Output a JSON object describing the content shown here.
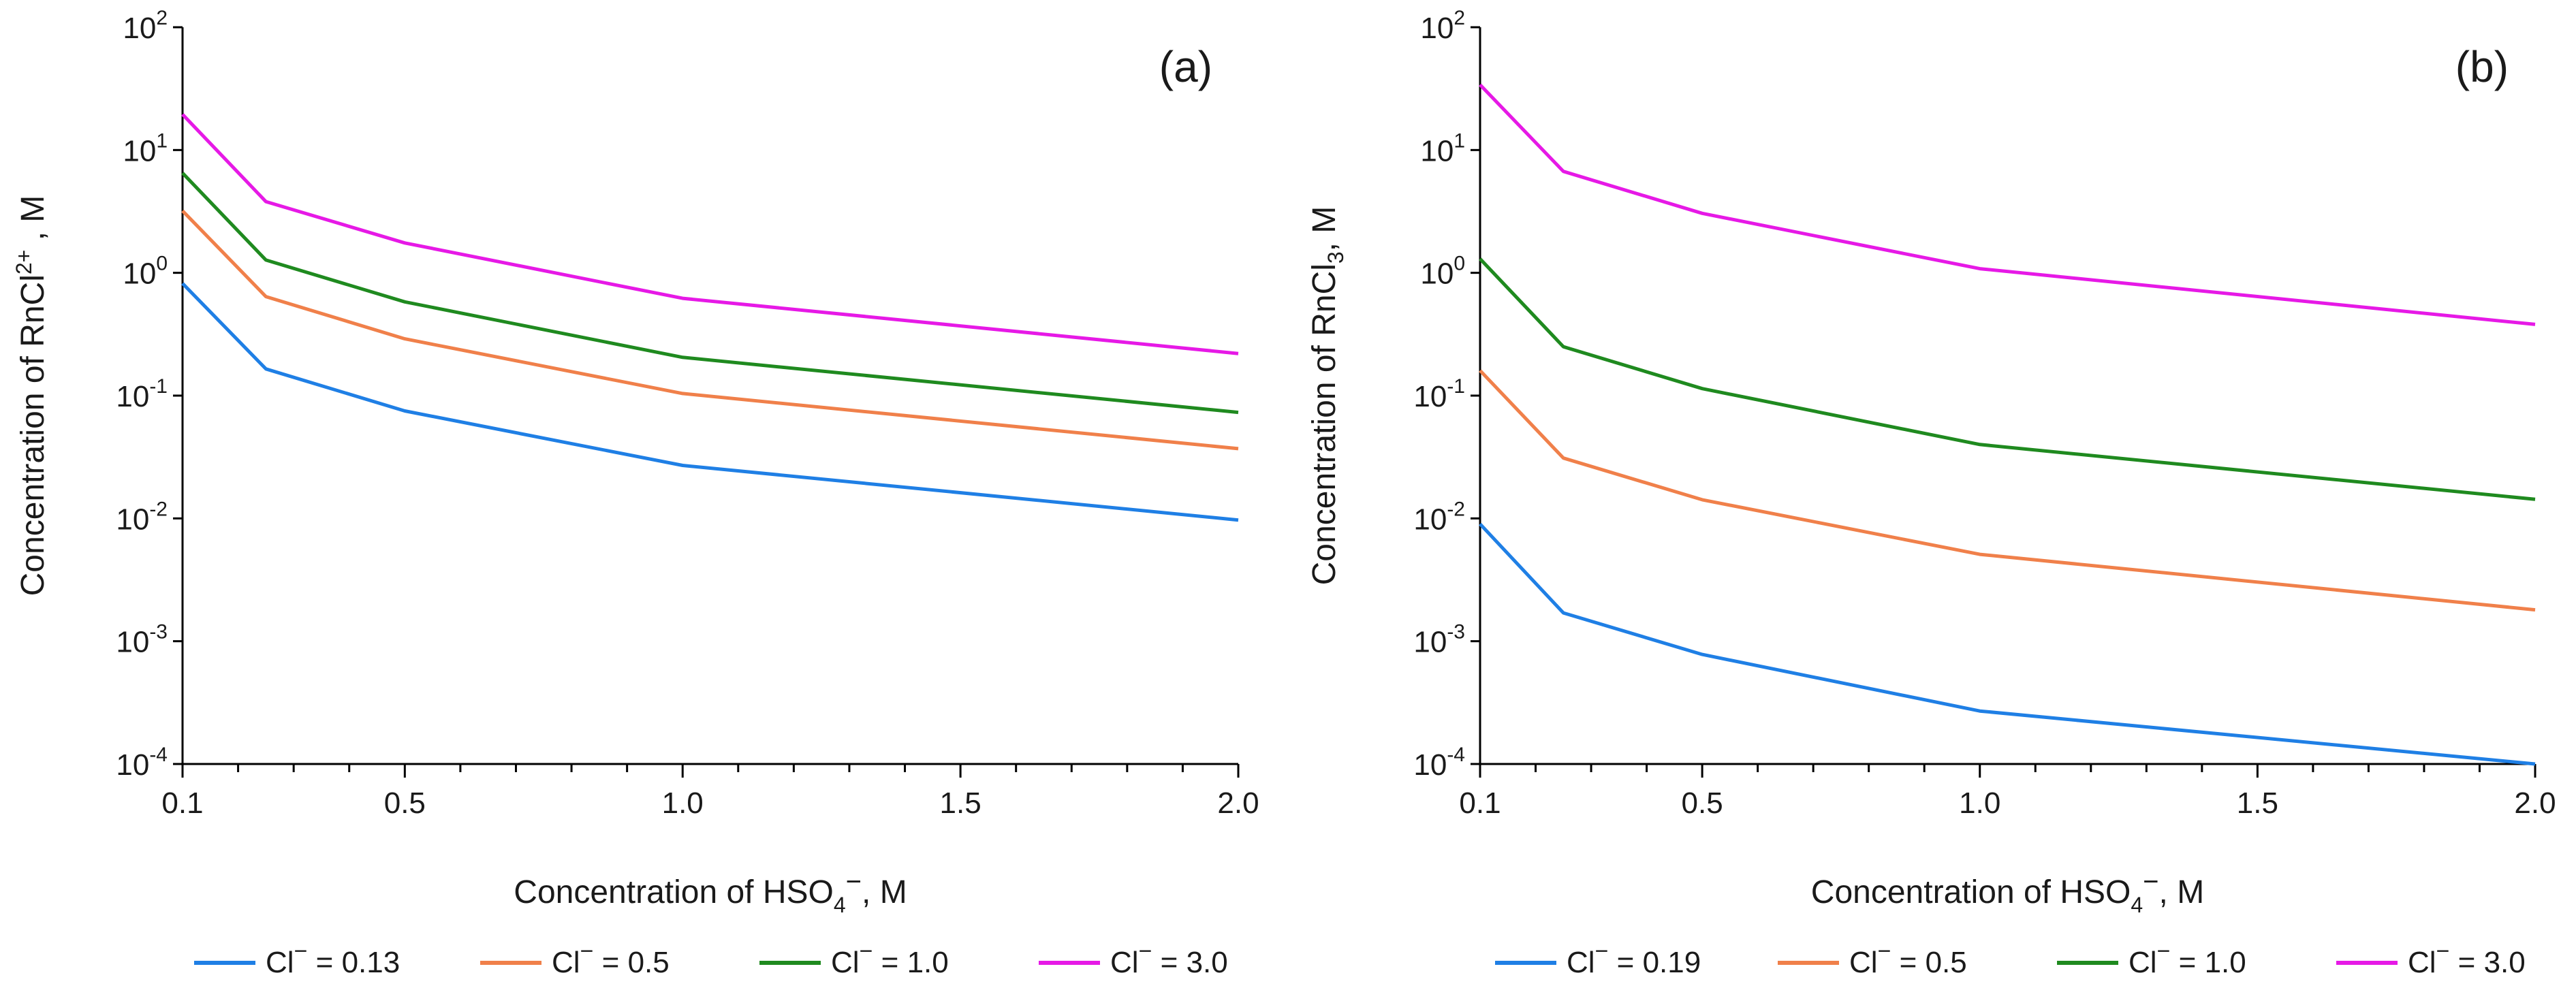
{
  "chart_data": [
    {
      "type": "line",
      "panel_label": "(a)",
      "xlabel": "Concentration of HSO",
      "xlabel_sub": "4",
      "xlabel_sup": "−",
      "xlabel_tail": ", M",
      "ylabel": "Concentration of RnCl",
      "ylabel_sup": "2+",
      "ylabel_tail": " , M",
      "xlim": [
        0.1,
        2.0
      ],
      "ylim_exp": [
        -4,
        2
      ],
      "yscale": "log",
      "x_ticks": [
        0.1,
        0.5,
        1.0,
        1.5,
        2.0
      ],
      "x_tick_labels": [
        "0.1",
        "0.5",
        "1.0",
        "1.5",
        "2.0"
      ],
      "y_tick_exps": [
        2,
        1,
        0,
        -1,
        -2,
        -3,
        -4
      ],
      "y_tick_labels": [
        "2",
        "1",
        "0",
        "-1",
        "-2",
        "-3",
        "-4"
      ],
      "y_tick_base": "10",
      "x": [
        0.1,
        0.25,
        0.5,
        1.0,
        2.0
      ],
      "series": [
        {
          "name_prefix": "Cl",
          "name_sup": "−",
          "name_value": " = 0.13",
          "color": "#1f7fe5",
          "values": [
            0.82,
            0.165,
            0.075,
            0.027,
            0.0097
          ]
        },
        {
          "name_prefix": "Cl",
          "name_sup": "−",
          "name_value": " = 0.5",
          "color": "#f0804a",
          "values": [
            3.2,
            0.64,
            0.29,
            0.104,
            0.037
          ]
        },
        {
          "name_prefix": "Cl",
          "name_sup": "−",
          "name_value": " = 1.0",
          "color": "#1f8a1f",
          "values": [
            6.5,
            1.27,
            0.58,
            0.205,
            0.073
          ]
        },
        {
          "name_prefix": "Cl",
          "name_sup": "−",
          "name_value": " = 3.0",
          "color": "#e619e6",
          "values": [
            19.5,
            3.8,
            1.75,
            0.62,
            0.22
          ]
        }
      ],
      "legend_position": "bottom"
    },
    {
      "type": "line",
      "panel_label": "(b)",
      "xlabel": "Concentration of HSO",
      "xlabel_sub": "4",
      "xlabel_sup": "−",
      "xlabel_tail": ", M",
      "ylabel": "Concentration of RnCl",
      "ylabel_sub": "3",
      "ylabel_tail": ", M",
      "xlim": [
        0.1,
        2.0
      ],
      "ylim_exp": [
        -4,
        2
      ],
      "yscale": "log",
      "x_ticks": [
        0.1,
        0.5,
        1.0,
        1.5,
        2.0
      ],
      "x_tick_labels": [
        "0.1",
        "0.5",
        "1.0",
        "1.5",
        "2.0"
      ],
      "y_tick_exps": [
        2,
        1,
        0,
        -1,
        -2,
        -3,
        -4
      ],
      "y_tick_labels": [
        "2",
        "1",
        "0",
        "-1",
        "-2",
        "-3",
        "-4"
      ],
      "y_tick_base": "10",
      "x": [
        0.1,
        0.25,
        0.5,
        1.0,
        2.0
      ],
      "series": [
        {
          "name_prefix": "Cl",
          "name_sup": "−",
          "name_value": " = 0.19",
          "color": "#1f7fe5",
          "values": [
            0.009,
            0.0017,
            0.00078,
            0.00027,
            0.0001
          ]
        },
        {
          "name_prefix": "Cl",
          "name_sup": "−",
          "name_value": " = 0.5",
          "color": "#f0804a",
          "values": [
            0.16,
            0.031,
            0.0142,
            0.0051,
            0.0018
          ]
        },
        {
          "name_prefix": "Cl",
          "name_sup": "−",
          "name_value": " = 1.0",
          "color": "#1f8a1f",
          "values": [
            1.3,
            0.25,
            0.114,
            0.04,
            0.0143
          ]
        },
        {
          "name_prefix": "Cl",
          "name_sup": "−",
          "name_value": " = 3.0",
          "color": "#e619e6",
          "values": [
            34,
            6.7,
            3.05,
            1.08,
            0.38
          ]
        }
      ],
      "legend_position": "bottom"
    }
  ]
}
